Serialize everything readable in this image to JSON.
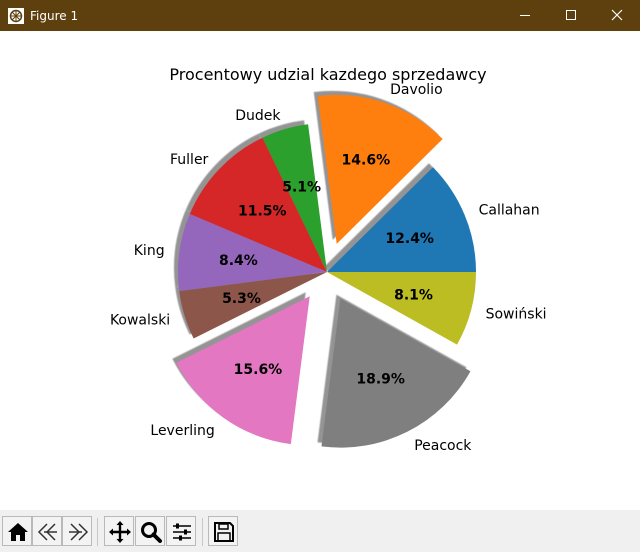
{
  "window": {
    "title": "Figure 1",
    "bar_color": "#5e3f0e",
    "controls": [
      "minimize-icon",
      "maximize-icon",
      "close-icon"
    ]
  },
  "toolbar": {
    "buttons": [
      "home-icon",
      "back-icon",
      "forward-icon",
      "pan-icon",
      "zoom-icon",
      "configure-subplots-icon",
      "save-icon"
    ]
  },
  "chart_data": {
    "type": "pie",
    "title": "Procentowy udzial kazdego sprzedawcy",
    "labels": [
      "Callahan",
      "Davolio",
      "Dudek",
      "Fuller",
      "King",
      "Kowalski",
      "Leverling",
      "Peacock",
      "Sowiński"
    ],
    "values": [
      12.4,
      14.6,
      5.1,
      11.5,
      8.4,
      5.3,
      15.6,
      18.9,
      8.1
    ],
    "value_labels": [
      "12.4%",
      "14.6%",
      "5.1%",
      "11.5%",
      "8.4%",
      "5.3%",
      "15.6%",
      "18.9%",
      "8.1%"
    ],
    "exploded": [
      false,
      true,
      false,
      false,
      false,
      false,
      true,
      true,
      false
    ],
    "colors": [
      "#1f77b4",
      "#ff7f0e",
      "#2ca02c",
      "#d62728",
      "#9467bd",
      "#8c564b",
      "#e377c2",
      "#7f7f7f",
      "#bcbd22"
    ],
    "shadow": true,
    "start_angle": 0,
    "direction": "counterclockwise"
  }
}
